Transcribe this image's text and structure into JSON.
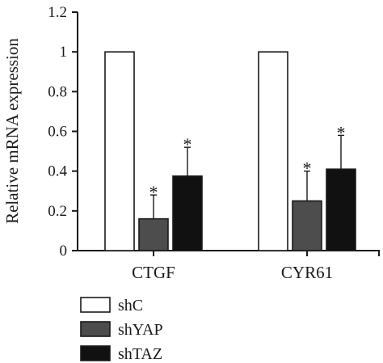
{
  "chart_data": {
    "type": "bar",
    "title": "",
    "xlabel": "",
    "ylabel": "Relative mRNA expression",
    "ylim": [
      0,
      1.2
    ],
    "yticks": [
      "0",
      "0.2",
      "0.4",
      "0.6",
      "0.8",
      "1",
      "1.2"
    ],
    "categories": [
      "CTGF",
      "CYR61"
    ],
    "series": [
      {
        "name": "shC",
        "values": [
          1.0,
          1.0
        ],
        "errors": [
          0,
          0
        ],
        "marks": [
          "",
          ""
        ],
        "color": "#ffffff"
      },
      {
        "name": "shYAP",
        "values": [
          0.16,
          0.25
        ],
        "errors": [
          0.12,
          0.15
        ],
        "marks": [
          "*",
          "*"
        ],
        "color": "#4d4d4d"
      },
      {
        "name": "shTAZ",
        "values": [
          0.375,
          0.41
        ],
        "errors": [
          0.145,
          0.17
        ],
        "marks": [
          "*",
          "*"
        ],
        "color": "#111111"
      }
    ],
    "legend_position": "bottom-left",
    "grid": false
  }
}
